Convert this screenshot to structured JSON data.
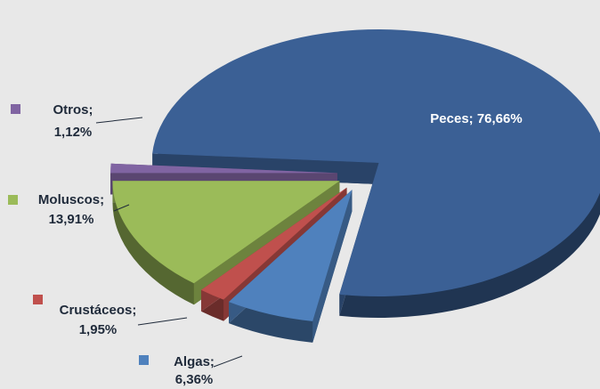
{
  "chart_data": {
    "type": "pie3d",
    "values": [
      6.36,
      1.95,
      13.91,
      1.12,
      76.66
    ],
    "value_labels": [
      [
        "Algas;",
        "6,36%"
      ],
      [
        "Crustáceos;",
        "1,95%"
      ],
      [
        "Moluscos;",
        "13,91%"
      ],
      [
        "Otros;",
        "1,12%"
      ],
      [
        "Peces; 76,66%"
      ]
    ],
    "colors": [
      "#4f81bd",
      "#c0504d",
      "#9bbb59",
      "#8064a2",
      "#3b6095"
    ],
    "exploded": true
  }
}
